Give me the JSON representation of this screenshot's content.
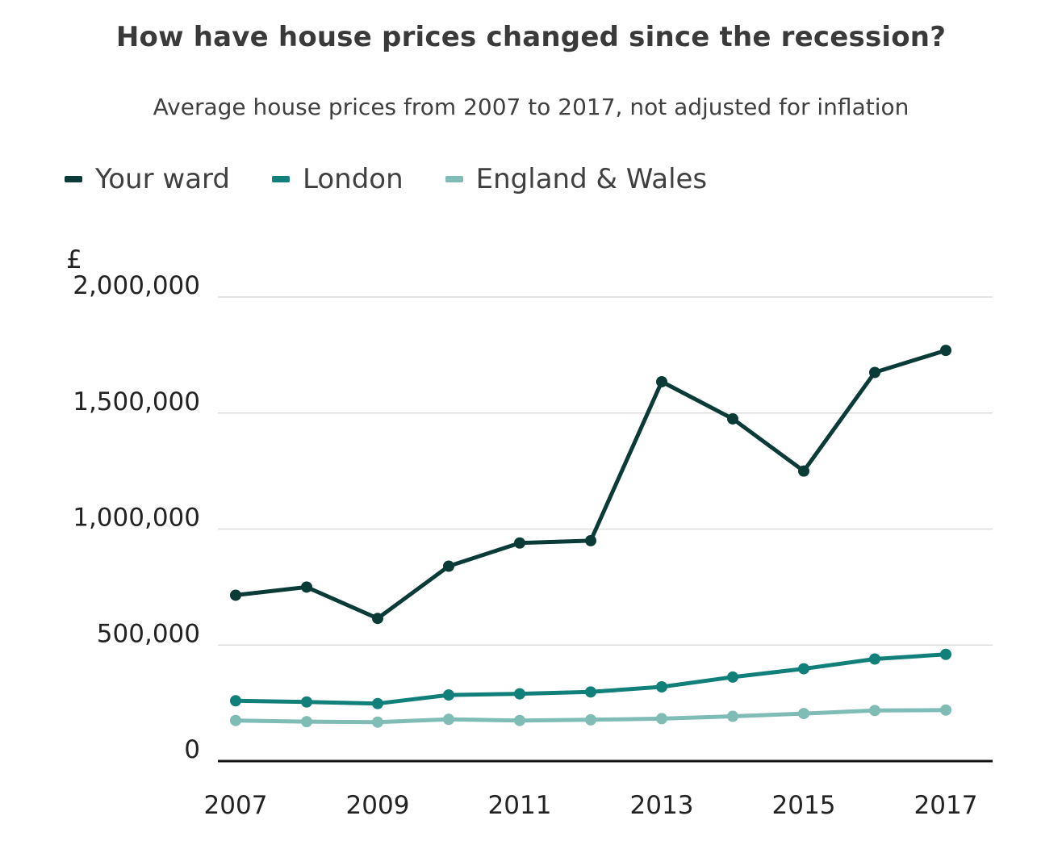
{
  "chart_data": {
    "type": "line",
    "title": "How have house prices changed since the recession?",
    "subtitle": "Average house prices from 2007 to 2017, not adjusted for inflation",
    "ylabel": "£",
    "ylim": [
      0,
      2000000
    ],
    "xlim": [
      2007,
      2017
    ],
    "yticks": [
      0,
      500000,
      1000000,
      1500000,
      2000000
    ],
    "ytick_labels": [
      "0",
      "500,000",
      "1,000,000",
      "1,500,000",
      "2,000,000"
    ],
    "xticks": [
      2007,
      2009,
      2011,
      2013,
      2015,
      2017
    ],
    "xtick_labels": [
      "2007",
      "2009",
      "2011",
      "2013",
      "2015",
      "2017"
    ],
    "grid": true,
    "legend_position": "top-left",
    "x": [
      2007,
      2008,
      2009,
      2010,
      2011,
      2012,
      2013,
      2014,
      2015,
      2016,
      2017
    ],
    "series": [
      {
        "name": "Your ward",
        "color": "#0b3b36",
        "values": [
          715000,
          750000,
          615000,
          840000,
          940000,
          950000,
          1635000,
          1475000,
          1250000,
          1675000,
          1770000
        ]
      },
      {
        "name": "London",
        "color": "#12807a",
        "values": [
          260000,
          255000,
          248000,
          285000,
          290000,
          298000,
          320000,
          362000,
          398000,
          440000,
          460000
        ]
      },
      {
        "name": "England & Wales",
        "color": "#7fbcb6",
        "values": [
          175000,
          170000,
          168000,
          180000,
          175000,
          178000,
          183000,
          193000,
          205000,
          218000,
          220000
        ]
      }
    ]
  }
}
